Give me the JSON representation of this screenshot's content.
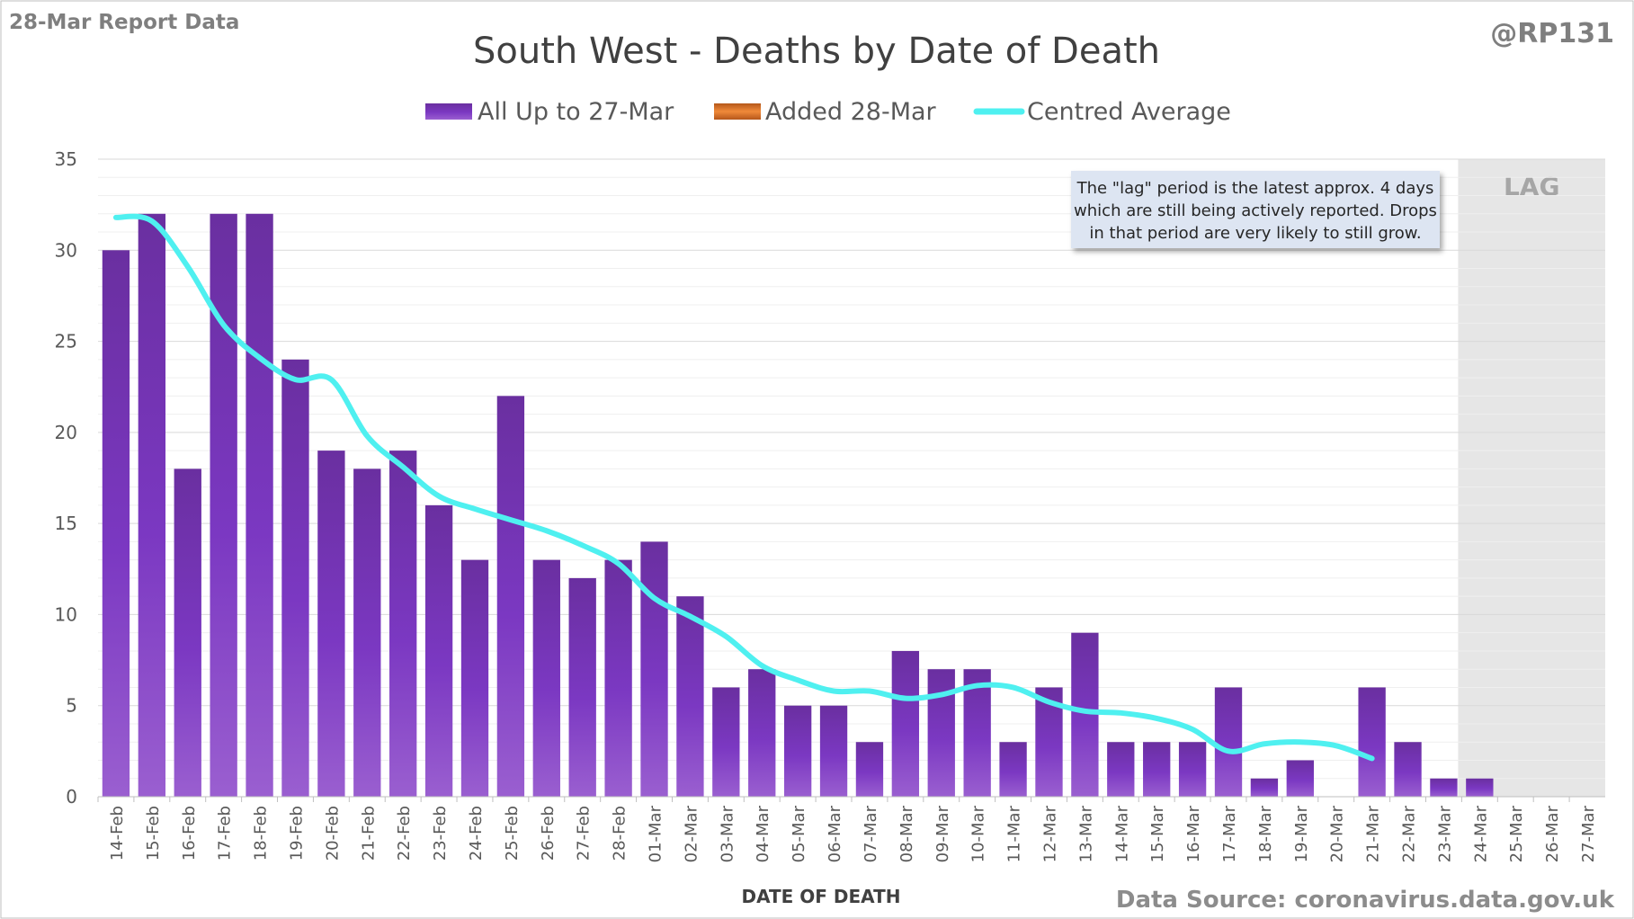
{
  "header": {
    "report_label": "28-Mar Report Data",
    "handle": "@RP131",
    "source": "Data Source: coronavirus.data.gov.uk"
  },
  "annotation": {
    "lines": [
      "The \"lag\" period is the latest approx. 4 days",
      "which are still being actively reported.  Drops",
      "in that period are very likely to still grow."
    ]
  },
  "lag_label": "LAG",
  "colors": {
    "bar_top": "#6a2fa0",
    "bar_mid": "#7b38c2",
    "bar_bottom": "#9a5fd0",
    "added": "#e07b2a",
    "average": "#4ff0f0",
    "lag_shade": "#e6e6e6",
    "note_bg": "#dde5f2",
    "grid": "#d9d9d9",
    "axis_text": "#595959"
  },
  "chart_data": {
    "type": "bar",
    "title": "South West - Deaths by Date of Death",
    "xlabel": "DATE OF DEATH",
    "ylabel": "",
    "ylim": [
      0,
      35
    ],
    "yticks": [
      0,
      5,
      10,
      15,
      20,
      25,
      30,
      35
    ],
    "legend_position": "top",
    "categories": [
      "14-Feb",
      "15-Feb",
      "16-Feb",
      "17-Feb",
      "18-Feb",
      "19-Feb",
      "20-Feb",
      "21-Feb",
      "22-Feb",
      "23-Feb",
      "24-Feb",
      "25-Feb",
      "26-Feb",
      "27-Feb",
      "28-Feb",
      "01-Mar",
      "02-Mar",
      "03-Mar",
      "04-Mar",
      "05-Mar",
      "06-Mar",
      "07-Mar",
      "08-Mar",
      "09-Mar",
      "10-Mar",
      "11-Mar",
      "12-Mar",
      "13-Mar",
      "14-Mar",
      "15-Mar",
      "16-Mar",
      "17-Mar",
      "18-Mar",
      "19-Mar",
      "20-Mar",
      "21-Mar",
      "22-Mar",
      "23-Mar",
      "24-Mar",
      "25-Mar",
      "26-Mar",
      "27-Mar"
    ],
    "lag_start": "24-Mar",
    "series": [
      {
        "name": "All Up to 27-Mar",
        "type": "bar",
        "values": [
          30,
          32,
          18,
          32,
          32,
          24,
          19,
          18,
          19,
          16,
          13,
          22,
          13,
          12,
          13,
          14,
          11,
          6,
          7,
          5,
          5,
          3,
          8,
          7,
          7,
          3,
          6,
          9,
          3,
          3,
          3,
          6,
          1,
          2,
          0,
          6,
          3,
          1,
          1,
          0,
          0,
          0
        ]
      },
      {
        "name": "Added 28-Mar",
        "type": "bar",
        "values": [
          0,
          0,
          0,
          0,
          0,
          0,
          0,
          0,
          0,
          0,
          0,
          0,
          0,
          0,
          0,
          0,
          0,
          0,
          0,
          0,
          0,
          0,
          0,
          0,
          0,
          0,
          0,
          0,
          0,
          0,
          0,
          0,
          0,
          0,
          0,
          0,
          0,
          0,
          0,
          0,
          0,
          0
        ]
      },
      {
        "name": "Centred Average",
        "type": "line",
        "values": [
          31.8,
          31.6,
          29.1,
          25.9,
          24.1,
          22.9,
          22.9,
          19.8,
          18.1,
          16.5,
          15.8,
          15.2,
          14.6,
          13.8,
          12.8,
          10.9,
          9.9,
          8.8,
          7.2,
          6.4,
          5.8,
          5.8,
          5.4,
          5.6,
          6.1,
          6.0,
          5.2,
          4.7,
          4.6,
          4.3,
          3.7,
          2.5,
          2.9,
          3.0,
          2.8,
          2.1,
          null,
          null,
          null,
          null,
          null,
          null
        ]
      }
    ]
  }
}
